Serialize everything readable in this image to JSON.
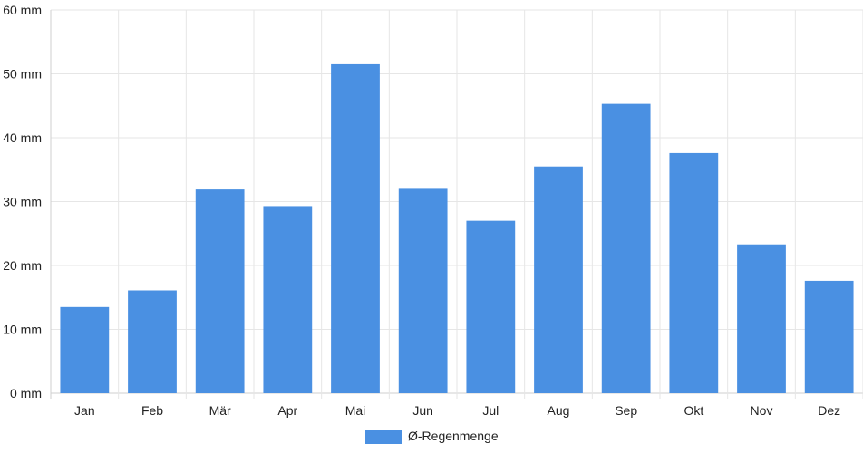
{
  "chart_data": {
    "type": "bar",
    "categories": [
      "Jan",
      "Feb",
      "Mär",
      "Apr",
      "Mai",
      "Jun",
      "Jul",
      "Aug",
      "Sep",
      "Okt",
      "Nov",
      "Dez"
    ],
    "series": [
      {
        "name": "Ø-Regenmenge",
        "values": [
          13.5,
          16.1,
          31.9,
          29.3,
          51.5,
          32.0,
          27.0,
          35.5,
          45.3,
          37.6,
          23.3,
          17.6
        ],
        "color": "#4a90e2"
      }
    ],
    "y_ticks": [
      "0 mm",
      "10 mm",
      "20 mm",
      "30 mm",
      "40 mm",
      "50 mm",
      "60 mm"
    ],
    "ylim": [
      0,
      60
    ],
    "grid": true,
    "legend_position": "bottom-center"
  }
}
